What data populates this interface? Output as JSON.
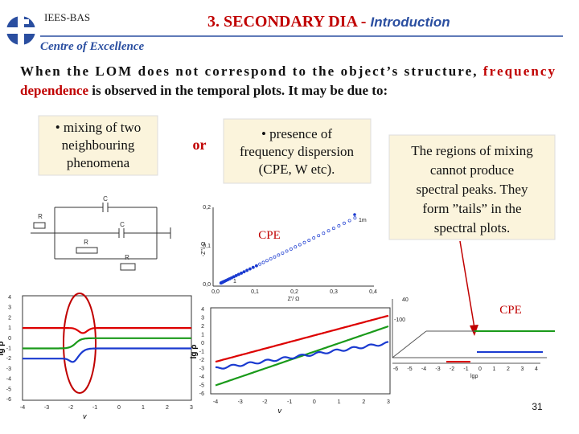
{
  "header": {
    "org": "IEES-BAS",
    "title": "3.  SECONDARY DIA - ",
    "title_sub": "Introduction",
    "subtitle": "Centre of Excellence"
  },
  "paragraph": {
    "part1": "When the LOM does not correspond to the object’s structure,",
    "highlight1": "frequency",
    "highlight2": "dependence",
    "part2": "is observed in the temporal plots. It may be due to:"
  },
  "box1": {
    "lines": [
      "• mixing of two",
      "neighbouring",
      "phenomena"
    ]
  },
  "connector": "or",
  "box2": {
    "lines": [
      "• presence of",
      "frequency dispersion",
      "(CPE, W etc)."
    ]
  },
  "box3": {
    "lines": [
      "The regions of mixing",
      "cannot produce",
      "spectral peaks. They",
      "form ”tails” in the",
      "spectral plots."
    ]
  },
  "circuit": {
    "labels": [
      "C",
      "R",
      "C",
      "R",
      "R"
    ]
  },
  "nyquist": {
    "label": "CPE",
    "yticks": [
      "0,2",
      "0,1",
      "0,0"
    ],
    "xticks": [
      "0,0",
      "0,1",
      "0,2",
      "0,3",
      "0,4"
    ],
    "ylabel": "-Z''/ Ω",
    "xlabel": "Z'/ Ω",
    "point_high": "1m",
    "point_low": "1"
  },
  "plot_left": {
    "yticks": [
      "4",
      "3",
      "2",
      "1",
      "0",
      "-1",
      "-2",
      "-3",
      "-4",
      "-5",
      "-6"
    ],
    "xticks": [
      "-4",
      "-3",
      "-2",
      "-1",
      "0",
      "1",
      "2",
      "3"
    ],
    "ylabel": "lg ρ",
    "xlabel": "v"
  },
  "plot_mid": {
    "yticks": [
      "4",
      "3",
      "2",
      "1",
      "0",
      "-1",
      "-2",
      "-3",
      "-4",
      "-5",
      "-6"
    ],
    "xticks": [
      "-4",
      "-3",
      "-2",
      "-1",
      "0",
      "1",
      "2",
      "3"
    ],
    "ylabel": "lg ρ",
    "xlabel": "v"
  },
  "plot_3d": {
    "label": "CPE",
    "xticks": [
      "-6",
      "-5",
      "-4",
      "-3",
      "-2",
      "-1",
      "0",
      "1",
      "2",
      "3",
      "4"
    ],
    "xlabel": "lgρ",
    "zticks": [
      "40",
      "-100"
    ]
  },
  "page_number": "31"
}
